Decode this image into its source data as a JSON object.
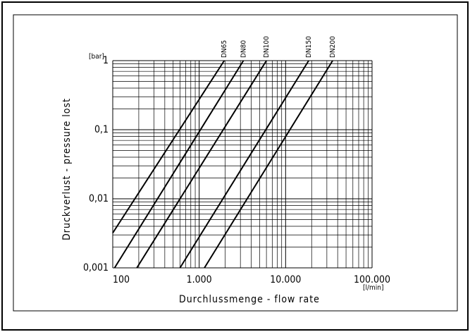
{
  "chart_data": {
    "type": "line",
    "log_x": true,
    "log_y": true,
    "grid": true,
    "y_unit": "[bar]",
    "x_unit": "[l/min]",
    "y_label": "Druckverlust  -  pressure lost",
    "x_label": "Durchlussmenge  -  flow rate",
    "xlim": [
      100,
      100000
    ],
    "ylim": [
      0.001,
      1
    ],
    "xticks": [
      100,
      {
        "value": 1000,
        "label": "1.000"
      },
      {
        "value": 10000,
        "label": "10.000"
      },
      {
        "value": 100000,
        "label": "100.000"
      }
    ],
    "yticks": [
      {
        "value": 0.001,
        "label": "0,001"
      },
      {
        "value": 0.01,
        "label": "0,01"
      },
      {
        "value": 0.1,
        "label": "0,1"
      },
      1
    ],
    "series": [
      {
        "name": "DN65",
        "color": "#000000",
        "x": [
          100,
          1950
        ],
        "values": [
          0.0032,
          1
        ]
      },
      {
        "name": "DN80",
        "color": "#000000",
        "x": [
          105,
          3250
        ],
        "values": [
          0.001,
          1
        ]
      },
      {
        "name": "DN100",
        "color": "#000000",
        "x": [
          190,
          6000
        ],
        "values": [
          0.001,
          1
        ]
      },
      {
        "name": "DN150",
        "color": "#000000",
        "x": [
          600,
          18500
        ],
        "values": [
          0.001,
          1
        ]
      },
      {
        "name": "DN200",
        "color": "#000000",
        "x": [
          1150,
          35000
        ],
        "values": [
          0.001,
          1
        ]
      }
    ]
  }
}
